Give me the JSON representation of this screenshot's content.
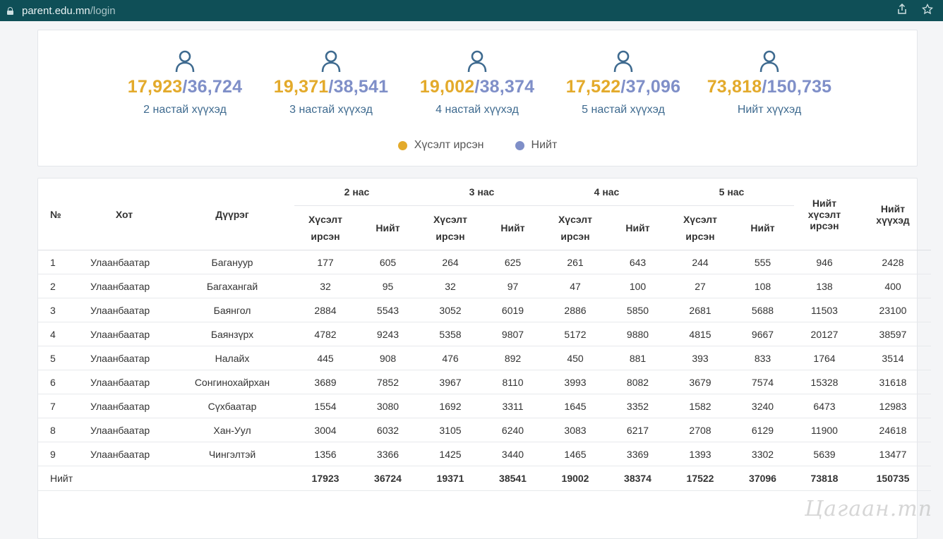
{
  "browser": {
    "url_host": "parent.edu.mn",
    "url_path": "/login",
    "icons": [
      "lock-icon",
      "share-icon",
      "star-icon"
    ]
  },
  "colors": {
    "requested": "#e3aa2b",
    "total": "#7f8fc8",
    "label": "#3e6a8f"
  },
  "stats": [
    {
      "requested": "17,923",
      "total": "36,724",
      "label": "2 настай хүүхэд"
    },
    {
      "requested": "19,371",
      "total": "38,541",
      "label": "3 настай хүүхэд"
    },
    {
      "requested": "19,002",
      "total": "38,374",
      "label": "4 настай хүүхэд"
    },
    {
      "requested": "17,522",
      "total": "37,096",
      "label": "5 настай хүүхэд"
    },
    {
      "requested": "73,818",
      "total": "150,735",
      "label": "Нийт хүүхэд"
    }
  ],
  "legend": {
    "requested": "Хүсэлт ирсэн",
    "total": "Нийт"
  },
  "table": {
    "headers": {
      "no": "№",
      "city": "Хот",
      "district": "Дүүрэг",
      "age2": "2 нас",
      "age3": "3 нас",
      "age4": "4 нас",
      "age5": "5 нас",
      "req_line1": "Хүсэлт",
      "req_line2": "ирсэн",
      "total": "Нийт",
      "total_req_line1": "Нийт",
      "total_req_line2": "хүсэлт",
      "total_req_line3": "ирсэн",
      "total_children_line1": "Нийт",
      "total_children_line2": "хүүхэд"
    },
    "rows": [
      [
        "1",
        "Улаанбаатар",
        "Багануур",
        "177",
        "605",
        "264",
        "625",
        "261",
        "643",
        "244",
        "555",
        "946",
        "2428"
      ],
      [
        "2",
        "Улаанбаатар",
        "Багахангай",
        "32",
        "95",
        "32",
        "97",
        "47",
        "100",
        "27",
        "108",
        "138",
        "400"
      ],
      [
        "3",
        "Улаанбаатар",
        "Баянгол",
        "2884",
        "5543",
        "3052",
        "6019",
        "2886",
        "5850",
        "2681",
        "5688",
        "11503",
        "23100"
      ],
      [
        "4",
        "Улаанбаатар",
        "Баянзүрх",
        "4782",
        "9243",
        "5358",
        "9807",
        "5172",
        "9880",
        "4815",
        "9667",
        "20127",
        "38597"
      ],
      [
        "5",
        "Улаанбаатар",
        "Налайх",
        "445",
        "908",
        "476",
        "892",
        "450",
        "881",
        "393",
        "833",
        "1764",
        "3514"
      ],
      [
        "6",
        "Улаанбаатар",
        "Сонгинохайрхан",
        "3689",
        "7852",
        "3967",
        "8110",
        "3993",
        "8082",
        "3679",
        "7574",
        "15328",
        "31618"
      ],
      [
        "7",
        "Улаанбаатар",
        "Сүхбаатар",
        "1554",
        "3080",
        "1692",
        "3311",
        "1645",
        "3352",
        "1582",
        "3240",
        "6473",
        "12983"
      ],
      [
        "8",
        "Улаанбаатар",
        "Хан-Уул",
        "3004",
        "6032",
        "3105",
        "6240",
        "3083",
        "6217",
        "2708",
        "6129",
        "11900",
        "24618"
      ],
      [
        "9",
        "Улаанбаатар",
        "Чингэлтэй",
        "1356",
        "3366",
        "1425",
        "3440",
        "1465",
        "3369",
        "1393",
        "3302",
        "5639",
        "13477"
      ]
    ],
    "total_row": [
      "Нийт",
      "17923",
      "36724",
      "19371",
      "38541",
      "19002",
      "38374",
      "17522",
      "37096",
      "73818",
      "150735"
    ]
  },
  "watermark": "Цагаан.mn"
}
